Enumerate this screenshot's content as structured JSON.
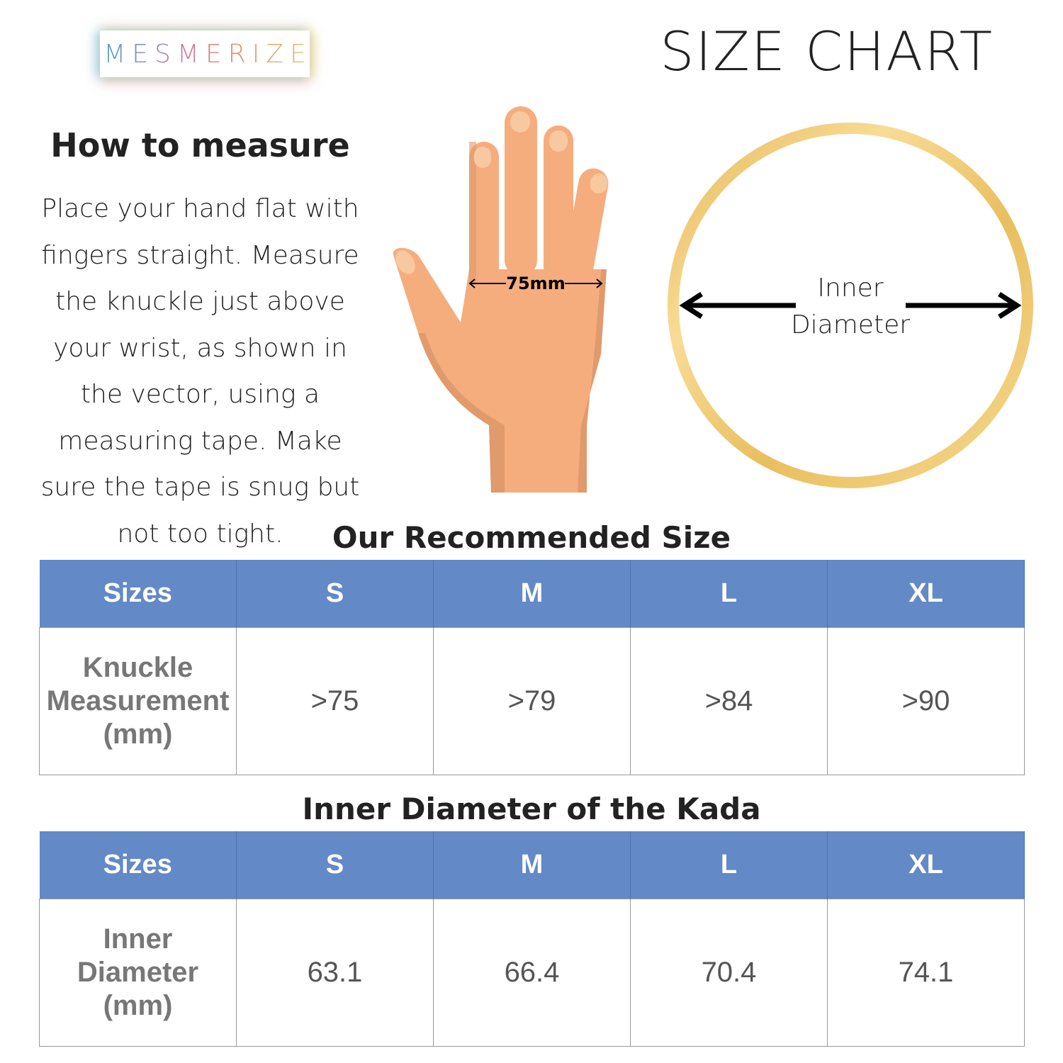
{
  "brand": {
    "logo_text": "MESMERIZE"
  },
  "header": {
    "title": "SIZE CHART"
  },
  "how_to": {
    "title": "How to measure",
    "text": "Place your hand flat with fingers straight. Measure the knuckle just above your wrist, as shown in the vector, using a measuring tape. Make sure the tape is snug but not too tight."
  },
  "hand_illustration": {
    "measurement_label": "75mm",
    "skin_color": "#f5ad7e",
    "shade_color": "#e09a6c"
  },
  "ring_illustration": {
    "label_line1": "Inner",
    "label_line2": "Diameter",
    "ring_color": "#e8c060"
  },
  "table_header_color": "#6389c6",
  "recommended_size": {
    "title": "Our Recommended Size",
    "headers": [
      "Sizes",
      "S",
      "M",
      "L",
      "XL"
    ],
    "row_label": [
      "Knuckle",
      "Measurement",
      "(mm)"
    ],
    "values": [
      ">75",
      ">79",
      ">84",
      ">90"
    ]
  },
  "inner_diameter": {
    "title": "Inner Diameter of the Kada",
    "headers": [
      "Sizes",
      "S",
      "M",
      "L",
      "XL"
    ],
    "row_label": [
      "Inner",
      "Diameter",
      "(mm)"
    ],
    "values": [
      "63.1",
      "66.4",
      "70.4",
      "74.1"
    ]
  }
}
